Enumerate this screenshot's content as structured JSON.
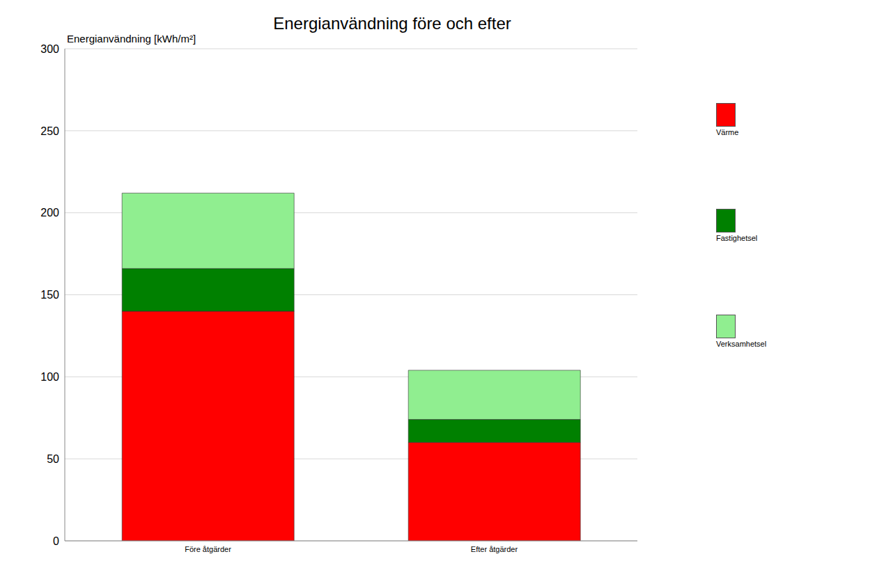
{
  "chart_data": {
    "type": "bar",
    "title": "Energianvändning före och efter",
    "y_label": "Energianvändning [kWh/m²]",
    "categories": [
      "Före åtgärder",
      "Efter åtgärder"
    ],
    "series": [
      {
        "name": "Värme",
        "color": "#ff0000",
        "values": [
          140,
          60
        ]
      },
      {
        "name": "Fastighetsel",
        "color": "#008000",
        "values": [
          26,
          14
        ]
      },
      {
        "name": "Verksamhetsel",
        "color": "#90ee90",
        "values": [
          46,
          30
        ]
      }
    ],
    "ylim": [
      0,
      300
    ],
    "yticks": [
      0,
      50,
      100,
      150,
      200,
      250,
      300
    ],
    "grid": true,
    "stacked": true,
    "legend": "right"
  }
}
